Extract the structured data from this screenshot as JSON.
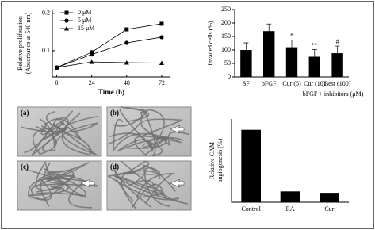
{
  "chart_data": [
    {
      "type": "line",
      "x_label": "Time (h)",
      "y_label": [
        "Relative proliferation",
        "(Absorbance at 540 nm)"
      ],
      "x": [
        0,
        24,
        48,
        72
      ],
      "xlim": [
        -3,
        78
      ],
      "xticks": [
        0,
        24,
        48,
        72
      ],
      "ylim": [
        0.03,
        0.21
      ],
      "yticks": [
        0.1,
        0.2
      ],
      "series": [
        {
          "name": "0 μM",
          "color": "#000000",
          "marker": "square",
          "values": [
            0.055,
            0.096,
            0.157,
            0.172
          ]
        },
        {
          "name": "5 μM",
          "color": "#000000",
          "marker": "circle",
          "values": [
            0.055,
            0.09,
            0.121,
            0.136
          ]
        },
        {
          "name": "15 μM",
          "color": "#000000",
          "marker": "triangle",
          "values": [
            0.055,
            0.07,
            0.068,
            0.067
          ]
        }
      ],
      "legend": "upper-left"
    },
    {
      "type": "bar",
      "x_label": "bFGF + inhibitors (μM)",
      "y_label": "Invaded cells (%)",
      "categories": [
        "SF",
        "bFGF",
        "Cur (5)",
        "Cur (10)",
        "Best (100)"
      ],
      "values": [
        100,
        170,
        110,
        75,
        88
      ],
      "color": "#000000",
      "annotations": [
        "*",
        "**",
        "#"
      ],
      "ylim": [
        0,
        250
      ],
      "yticks": [
        0,
        50,
        100,
        150,
        200,
        250
      ]
    },
    {
      "type": "bar",
      "y_label": [
        "Relative CAM",
        "angiogenesis (%)"
      ],
      "categories": [
        "Control",
        "RA",
        "Cur"
      ],
      "values": [
        100,
        15,
        13
      ],
      "color": "#000000",
      "ylim": [
        0,
        115
      ]
    }
  ],
  "micrographs": {
    "labels": [
      "(a)",
      "(b)",
      "(c)",
      "(d)"
    ]
  }
}
